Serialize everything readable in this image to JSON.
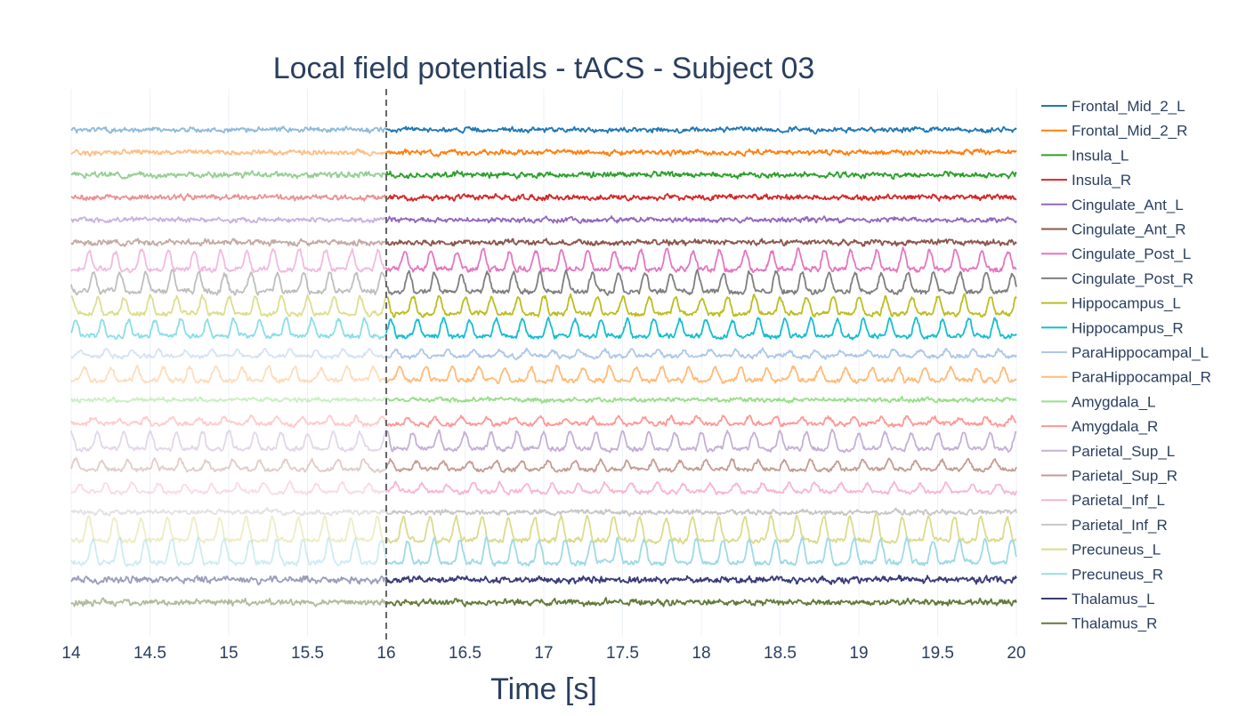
{
  "chart_data": {
    "type": "line",
    "title": "Local field potentials - tACS - Subject 03",
    "xlabel": "Time [s]",
    "ylabel": "",
    "xlim": [
      14,
      20
    ],
    "x_ticks": [
      14,
      14.5,
      15,
      15.5,
      16,
      16.5,
      17,
      17.5,
      18,
      18.5,
      19,
      19.5,
      20
    ],
    "x_tick_labels": [
      "14",
      "14.5",
      "15",
      "15.5",
      "16",
      "16.5",
      "17",
      "17.5",
      "18",
      "18.5",
      "19",
      "19.5",
      "20"
    ],
    "vertical_marker": {
      "x": 16,
      "style": "dashed",
      "color": "#666666"
    },
    "pre_marker_faded": true,
    "grid": "x",
    "legend_position": "right",
    "sample_rate_hz": 200,
    "series": [
      {
        "name": "Frontal_Mid_2_L",
        "color": "#1f77b4",
        "amplitude": 0.45,
        "rhythm_hz": 0,
        "rhythmic_strength": 0.0,
        "seed": 1
      },
      {
        "name": "Frontal_Mid_2_R",
        "color": "#ff7f0e",
        "amplitude": 0.45,
        "rhythm_hz": 0,
        "rhythmic_strength": 0.0,
        "seed": 2
      },
      {
        "name": "Insula_L",
        "color": "#2ca02c",
        "amplitude": 0.5,
        "rhythm_hz": 0,
        "rhythmic_strength": 0.0,
        "seed": 3
      },
      {
        "name": "Insula_R",
        "color": "#d62728",
        "amplitude": 0.5,
        "rhythm_hz": 0,
        "rhythmic_strength": 0.0,
        "seed": 4
      },
      {
        "name": "Cingulate_Ant_L",
        "color": "#9467bd",
        "amplitude": 0.45,
        "rhythm_hz": 0,
        "rhythmic_strength": 0.0,
        "seed": 5
      },
      {
        "name": "Cingulate_Ant_R",
        "color": "#8c564b",
        "amplitude": 0.5,
        "rhythm_hz": 0,
        "rhythmic_strength": 0.0,
        "seed": 6
      },
      {
        "name": "Cingulate_Post_L",
        "color": "#e377c2",
        "amplitude": 1.0,
        "rhythm_hz": 6,
        "rhythmic_strength": 0.8,
        "seed": 7
      },
      {
        "name": "Cingulate_Post_R",
        "color": "#7f7f7f",
        "amplitude": 1.0,
        "rhythm_hz": 6,
        "rhythmic_strength": 0.8,
        "seed": 8
      },
      {
        "name": "Hippocampus_L",
        "color": "#bcbd22",
        "amplitude": 0.9,
        "rhythm_hz": 6,
        "rhythmic_strength": 0.8,
        "seed": 9
      },
      {
        "name": "Hippocampus_R",
        "color": "#17becf",
        "amplitude": 0.9,
        "rhythm_hz": 6,
        "rhythmic_strength": 0.8,
        "seed": 10
      },
      {
        "name": "ParaHippocampal_L",
        "color": "#aec7e8",
        "amplitude": 0.55,
        "rhythm_hz": 6,
        "rhythmic_strength": 0.5,
        "seed": 11
      },
      {
        "name": "ParaHippocampal_R",
        "color": "#ffbb78",
        "amplitude": 0.8,
        "rhythm_hz": 6,
        "rhythmic_strength": 0.7,
        "seed": 12
      },
      {
        "name": "Amygdala_L",
        "color": "#98df8a",
        "amplitude": 0.4,
        "rhythm_hz": 0,
        "rhythmic_strength": 0.0,
        "seed": 13
      },
      {
        "name": "Amygdala_R",
        "color": "#ff9896",
        "amplitude": 0.6,
        "rhythm_hz": 6,
        "rhythmic_strength": 0.5,
        "seed": 14
      },
      {
        "name": "Parietal_Sup_L",
        "color": "#c5b0d5",
        "amplitude": 0.9,
        "rhythm_hz": 6,
        "rhythmic_strength": 0.8,
        "seed": 15
      },
      {
        "name": "Parietal_Sup_R",
        "color": "#c49c94",
        "amplitude": 0.65,
        "rhythm_hz": 6,
        "rhythmic_strength": 0.6,
        "seed": 16
      },
      {
        "name": "Parietal_Inf_L",
        "color": "#f7b6d2",
        "amplitude": 0.6,
        "rhythm_hz": 6,
        "rhythmic_strength": 0.6,
        "seed": 17
      },
      {
        "name": "Parietal_Inf_R",
        "color": "#c7c7c7",
        "amplitude": 0.45,
        "rhythm_hz": 0,
        "rhythmic_strength": 0.0,
        "seed": 18
      },
      {
        "name": "Precuneus_L",
        "color": "#dbdb8d",
        "amplitude": 1.1,
        "rhythm_hz": 6,
        "rhythmic_strength": 0.9,
        "seed": 19
      },
      {
        "name": "Precuneus_R",
        "color": "#9edae5",
        "amplitude": 1.1,
        "rhythm_hz": 6,
        "rhythmic_strength": 0.9,
        "seed": 20
      },
      {
        "name": "Thalamus_L",
        "color": "#393b79",
        "amplitude": 0.6,
        "rhythm_hz": 0,
        "rhythmic_strength": 0.0,
        "seed": 21
      },
      {
        "name": "Thalamus_R",
        "color": "#637939",
        "amplitude": 0.55,
        "rhythm_hz": 0,
        "rhythmic_strength": 0.0,
        "seed": 22
      }
    ]
  }
}
